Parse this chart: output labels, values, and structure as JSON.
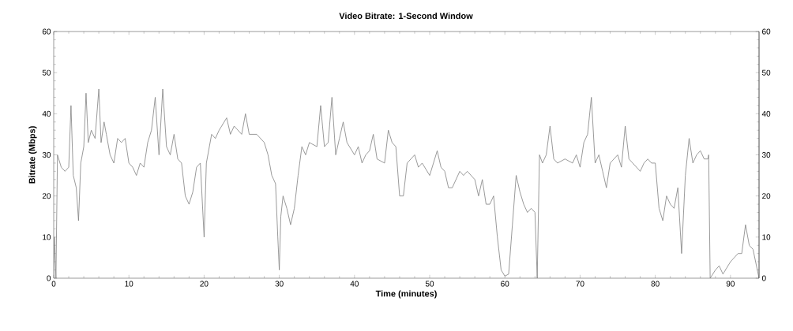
{
  "chart_data": {
    "type": "line",
    "title": "Video Bitrate: 1-Second Window",
    "xlabel": "Time (minutes)",
    "ylabel": "Bitrate (Mbps)",
    "x": [
      0,
      0.1,
      0.3,
      0.5,
      1,
      1.5,
      2,
      2.3,
      2.6,
      3,
      3.3,
      3.6,
      4,
      4.3,
      4.6,
      5,
      5.5,
      6,
      6.3,
      6.7,
      7,
      7.5,
      8,
      8.5,
      9,
      9.5,
      10,
      10.5,
      11,
      11.5,
      12,
      12.5,
      13,
      13.5,
      14,
      14.5,
      15,
      15.5,
      16,
      16.5,
      17,
      17.5,
      18,
      18.5,
      19,
      19.5,
      20,
      20.3,
      21,
      21.5,
      22,
      23,
      23.5,
      24,
      25,
      25.5,
      26,
      27,
      28,
      28.5,
      29,
      29.5,
      29.8,
      30,
      30.2,
      30.5,
      31,
      31.5,
      32,
      32.5,
      33,
      33.5,
      34,
      35,
      35.5,
      36,
      36.5,
      37,
      37.5,
      38,
      38.5,
      39,
      40,
      40.5,
      41,
      41.5,
      42,
      42.5,
      43,
      44,
      44.5,
      45,
      45.5,
      46,
      46.5,
      47,
      48,
      48.5,
      49,
      50,
      50.5,
      51,
      51.5,
      52,
      52.5,
      53,
      54,
      54.5,
      55,
      56,
      56.5,
      57,
      57.5,
      58,
      58.5,
      59,
      59.5,
      60,
      60.5,
      61,
      61.5,
      62,
      62.5,
      63,
      63.5,
      64,
      64.3,
      64.6,
      65,
      65.5,
      66,
      66.5,
      67,
      68,
      69,
      69.5,
      70,
      70.5,
      71,
      71.5,
      72,
      72.5,
      73,
      73.5,
      74,
      75,
      75.5,
      76,
      76.5,
      77,
      78,
      78.5,
      79,
      79.5,
      80,
      80.5,
      81,
      81.5,
      82,
      82.5,
      83,
      83.5,
      84,
      84.5,
      85,
      85.5,
      86,
      86.5,
      87,
      87.1,
      87.3,
      88,
      88.5,
      89,
      90,
      90.5,
      91,
      91.5,
      92,
      92.5,
      93,
      93.8
    ],
    "series": [
      {
        "color": "#808080",
        "values": [
          0,
          10,
          0,
          30,
          27,
          26,
          27,
          42,
          25,
          22,
          14,
          28,
          32,
          45,
          33,
          36,
          34,
          46,
          33,
          38,
          35,
          30,
          28,
          34,
          33,
          34,
          28,
          27,
          25,
          28,
          27,
          33,
          36,
          44,
          30,
          46,
          32,
          30,
          35,
          29,
          28,
          20,
          18,
          21,
          27,
          28,
          10,
          28,
          35,
          34,
          36,
          39,
          35,
          37,
          35,
          40,
          35,
          35,
          33,
          30,
          25,
          23,
          10,
          2,
          15,
          20,
          17,
          13,
          17,
          25,
          32,
          30,
          33,
          32,
          42,
          32,
          33,
          44,
          30,
          34,
          38,
          33,
          30,
          32,
          28,
          30,
          31,
          35,
          29,
          28,
          36,
          33,
          32,
          20,
          20,
          28,
          30,
          27,
          28,
          25,
          28,
          31,
          27,
          26,
          22,
          22,
          26,
          25,
          26,
          24,
          20,
          24,
          18,
          18,
          20,
          10,
          2,
          0.5,
          1,
          13,
          25,
          21,
          18,
          16,
          17,
          16,
          0,
          30,
          28,
          30,
          37,
          29,
          28,
          29,
          28,
          30,
          27,
          33,
          35,
          44,
          28,
          30,
          26,
          22,
          28,
          30,
          27,
          37,
          29,
          28,
          26,
          28,
          29,
          28,
          28,
          17,
          14,
          20,
          18,
          17,
          22,
          6,
          25,
          34,
          28,
          30,
          31,
          29,
          29,
          30,
          0,
          2,
          3,
          1,
          4,
          5,
          6,
          6,
          13,
          8,
          7,
          0
        ]
      }
    ],
    "xlim": [
      0,
      93.8
    ],
    "ylim": [
      0,
      60
    ],
    "xticks": [
      0,
      10,
      20,
      30,
      40,
      50,
      60,
      70,
      80,
      90
    ],
    "yticks": [
      0,
      10,
      20,
      30,
      40,
      50,
      60
    ],
    "y2lim": [
      0,
      60
    ],
    "y2ticks": [
      0,
      10,
      20,
      30,
      40,
      50,
      60
    ],
    "grid": false,
    "marker": "none",
    "line_style": "solid"
  }
}
